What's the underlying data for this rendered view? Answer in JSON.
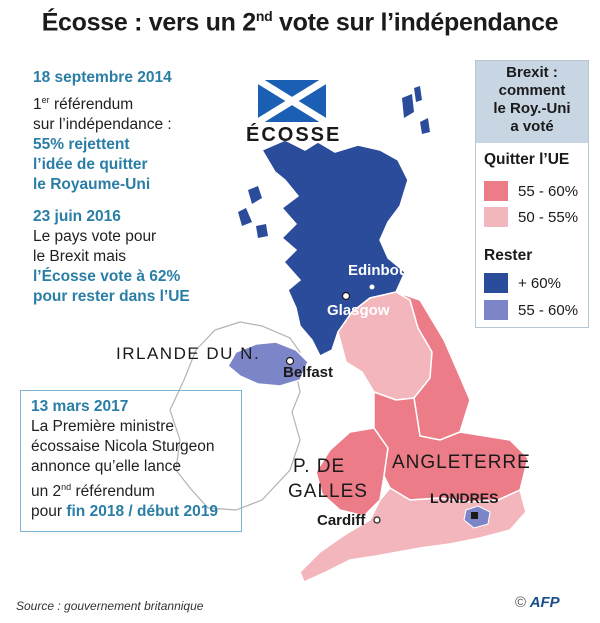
{
  "title": "Écosse : vers un 2",
  "title_sup": "nd",
  "title_rest": " vote sur l’indépendance",
  "block1": {
    "date": "18 septembre 2014",
    "line1_sup": "er",
    "line1_a": "1",
    "line1_b": " référendum",
    "line2": "sur l’indépendance :",
    "hl1": "55% rejettent",
    "hl2": "l’idée de quitter",
    "hl3": "le Royaume-Uni"
  },
  "block2": {
    "date": "23 juin 2016",
    "line1": "Le pays vote pour",
    "line2": "le Brexit mais",
    "hl1": "l’Écosse vote à 62%",
    "hl2": "pour rester dans l’UE"
  },
  "block3": {
    "date": "13 mars 2017",
    "line1": "La Première ministre",
    "line2": "écossaise Nicola Sturgeon",
    "line3": "annonce qu’elle lance",
    "line4_a": "un 2",
    "line4_sup": "nd",
    "line4_b": " référendum",
    "line5_a": "pour ",
    "line5_hl": "fin 2018 / début 2019"
  },
  "legend": {
    "head1": "Brexit :",
    "head2": "comment",
    "head3": "le Roy.-Uni",
    "head4": "a voté",
    "leave_title": "Quitter l’UE",
    "leave_items": [
      "55 - 60%",
      "50 - 55%"
    ],
    "remain_title": "Rester",
    "remain_items": [
      "+ 60%",
      "55 - 60%"
    ]
  },
  "colors": {
    "leave_high": "#ec7d88",
    "leave_low": "#f4b6bd",
    "remain_high": "#2b4c9b",
    "remain_low": "#7c85c7",
    "accent": "#2a7ea6"
  },
  "map_labels": {
    "scotland": "ÉCOSSE",
    "northern_ireland": "IRLANDE DU N.",
    "wales_1": "P. DE",
    "wales_2": "GALLES",
    "england": "ANGLETERRE",
    "edinburgh": "Edinbourgh",
    "glasgow": "Glasgow",
    "belfast": "Belfast",
    "cardiff": "Cardiff",
    "london": "LONDRES"
  },
  "source": "Source : gouvernement britannique",
  "credit": "AFP",
  "copyright": "©"
}
